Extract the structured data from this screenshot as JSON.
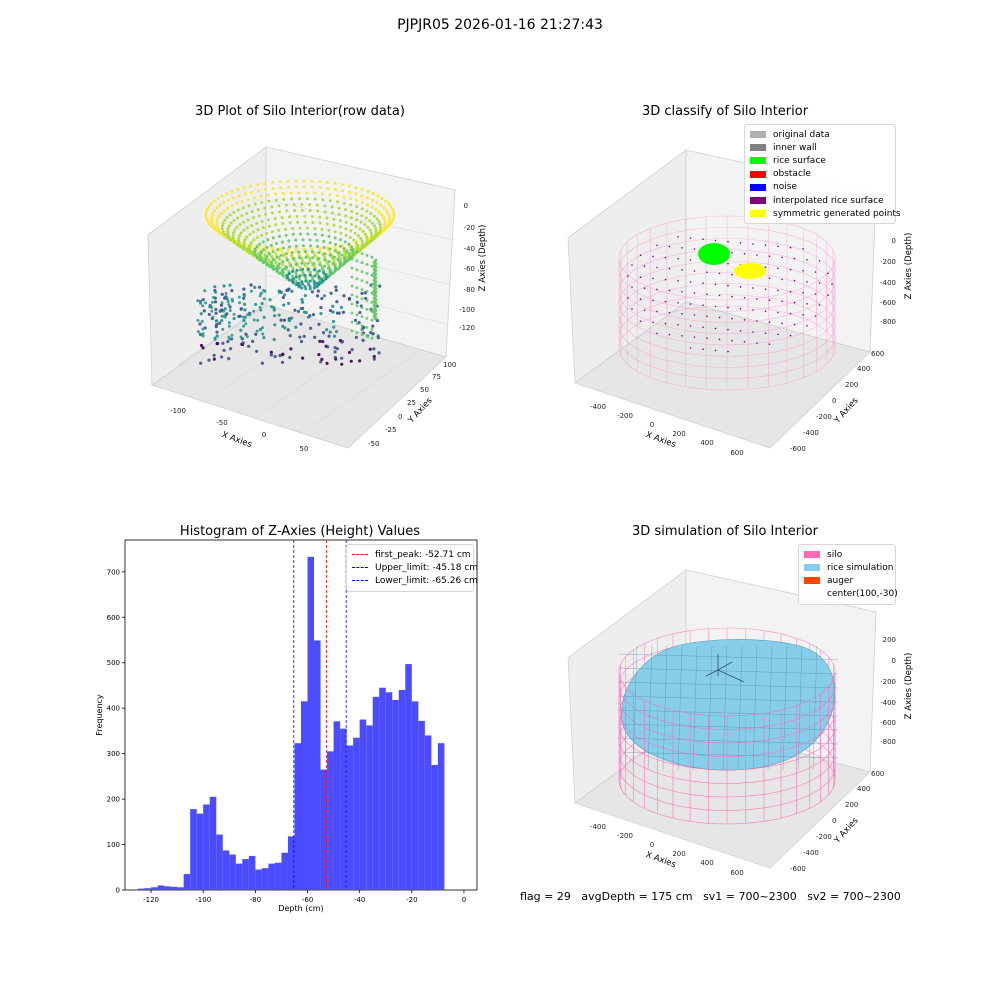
{
  "suptitle": "PJPJR05 2026-01-16 21:27:43",
  "panels": {
    "raw": {
      "title": "3D Plot of Silo Interior(row data)",
      "xlabel": "X Axies",
      "ylabel": "Y Axies",
      "zlabel": "Z Axies (Depth)",
      "x_ticks": [
        "-100",
        "-50",
        "0",
        "50"
      ],
      "y_ticks": [
        "-50",
        "-25",
        "0",
        "25",
        "50",
        "75",
        "100"
      ],
      "z_ticks": [
        "0",
        "-20",
        "-40",
        "-60",
        "-80",
        "-100",
        "-120"
      ]
    },
    "classify": {
      "title": "3D classify of Silo Interior",
      "xlabel": "X Axies",
      "ylabel": "Y Axies",
      "zlabel": "Z Axies (Depth)",
      "x_ticks": [
        "-400",
        "-200",
        "0",
        "200",
        "400",
        "600"
      ],
      "y_ticks": [
        "-600",
        "-400",
        "-200",
        "0",
        "200",
        "400",
        "600"
      ],
      "z_ticks": [
        "200",
        "0",
        "-200",
        "-400",
        "-600",
        "-800"
      ],
      "legend": [
        {
          "label": "original data",
          "color": "#b0b0b0"
        },
        {
          "label": "inner wall",
          "color": "#808080"
        },
        {
          "label": "rice surface",
          "color": "#00ff00"
        },
        {
          "label": "obstacle",
          "color": "#ff0000"
        },
        {
          "label": "noise",
          "color": "#0000ff"
        },
        {
          "label": "interpolated rice surface",
          "color": "#800080"
        },
        {
          "label": "symmetric generated points",
          "color": "#ffff00"
        }
      ]
    },
    "simulation": {
      "title": "3D simulation of Silo Interior",
      "xlabel": "X Axies",
      "ylabel": "Y Axies",
      "zlabel": "Z Axies (Depth)",
      "x_ticks": [
        "-400",
        "-200",
        "0",
        "200",
        "400",
        "600"
      ],
      "y_ticks": [
        "-600",
        "-400",
        "-200",
        "0",
        "200",
        "400",
        "600"
      ],
      "z_ticks": [
        "200",
        "0",
        "-200",
        "-400",
        "-600",
        "-800"
      ],
      "legend": [
        {
          "label": "silo",
          "color": "#ff69b4"
        },
        {
          "label": "rice simulation",
          "color": "#87ceeb"
        },
        {
          "label": "auger",
          "color": "#ff4500"
        },
        {
          "label": "center(100,-30)",
          "color": ""
        }
      ]
    }
  },
  "chart_data": {
    "type": "bar",
    "title": "Histogram of Z-Axies (Height) Values",
    "xlabel": "Depth (cm)",
    "ylabel": "Frequency",
    "xlim": [
      -130,
      5
    ],
    "ylim": [
      0,
      770
    ],
    "x_ticks": [
      -120,
      -100,
      -80,
      -60,
      -40,
      -20,
      0
    ],
    "y_ticks": [
      0,
      100,
      200,
      300,
      400,
      500,
      600,
      700
    ],
    "bin_start": -125,
    "bin_width": 2.5,
    "bar_color": "#4b4bff",
    "values": [
      3,
      4,
      6,
      10,
      8,
      7,
      6,
      35,
      178,
      168,
      188,
      205,
      122,
      87,
      78,
      58,
      68,
      75,
      45,
      48,
      58,
      60,
      82,
      118,
      323,
      415,
      733,
      549,
      265,
      305,
      371,
      355,
      318,
      335,
      375,
      362,
      425,
      445,
      435,
      418,
      440,
      497,
      415,
      372,
      340,
      275,
      323
    ],
    "lines": [
      {
        "label": "first_peak: -52.71 cm",
        "x": -52.71,
        "color": "#ff0000"
      },
      {
        "label": "Upper_limit: -45.18 cm",
        "x": -45.18,
        "color": "#0000ff"
      },
      {
        "label": "Lower_limit: -65.26 cm",
        "x": -65.26,
        "color": "#0000ff"
      }
    ]
  },
  "footer": {
    "flag": "flag = 29",
    "avg": "avgDepth = 175 cm",
    "sv1": "sv1 = 700~2300",
    "sv2": "sv2 = 700~2300"
  }
}
